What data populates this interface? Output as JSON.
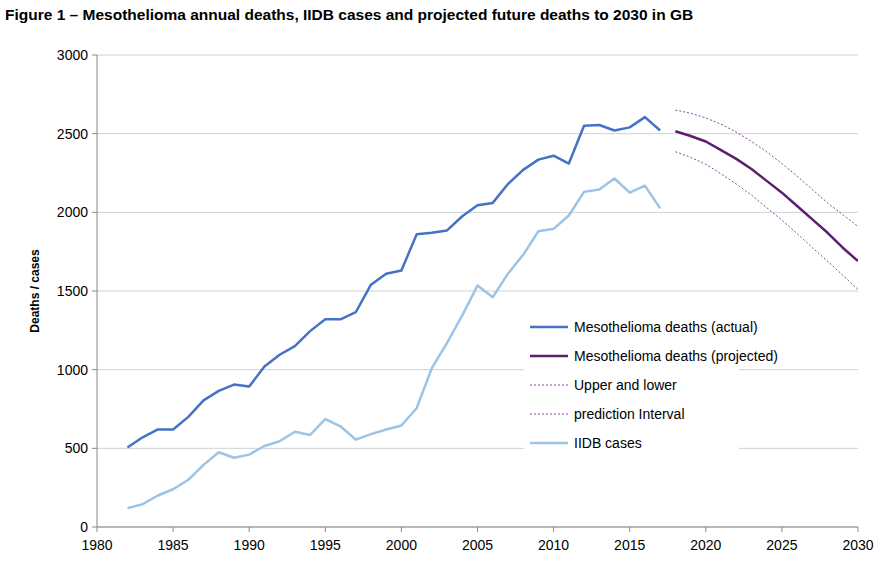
{
  "chart_data": {
    "type": "line",
    "title": "Figure 1 – Mesothelioma annual deaths, IIDB cases and projected future deaths to 2030 in GB",
    "y_label": "Deaths / cases",
    "x": [
      1982,
      1983,
      1984,
      1985,
      1986,
      1987,
      1988,
      1989,
      1990,
      1991,
      1992,
      1993,
      1994,
      1995,
      1996,
      1997,
      1998,
      1999,
      2000,
      2001,
      2002,
      2003,
      2004,
      2005,
      2006,
      2007,
      2008,
      2009,
      2010,
      2011,
      2012,
      2013,
      2014,
      2015,
      2016,
      2017,
      2018,
      2019,
      2020,
      2021,
      2022,
      2023,
      2024,
      2025,
      2026,
      2027,
      2028,
      2029,
      2030
    ],
    "series": [
      {
        "name": "Mesothelioma deaths (actual)",
        "color": "#4472c4",
        "line_style": "solid",
        "values": [
          505,
          570,
          620,
          620,
          700,
          805,
          865,
          905,
          893,
          1020,
          1095,
          1150,
          1245,
          1320,
          1320,
          1365,
          1540,
          1610,
          1630,
          1860,
          1870,
          1885,
          1975,
          2045,
          2060,
          2180,
          2270,
          2335,
          2360,
          2310,
          2550,
          2555,
          2520,
          2540,
          2605,
          2520,
          null,
          null,
          null,
          null,
          null,
          null,
          null,
          null,
          null,
          null,
          null,
          null,
          null
        ]
      },
      {
        "name": "Mesothelioma deaths (projected)",
        "color": "#5c1f6e",
        "line_style": "solid",
        "values": [
          null,
          null,
          null,
          null,
          null,
          null,
          null,
          null,
          null,
          null,
          null,
          null,
          null,
          null,
          null,
          null,
          null,
          null,
          null,
          null,
          null,
          null,
          null,
          null,
          null,
          null,
          null,
          null,
          null,
          null,
          null,
          null,
          null,
          null,
          null,
          null,
          2515,
          2485,
          2450,
          2395,
          2340,
          2275,
          2200,
          2125,
          2040,
          1955,
          1870,
          1775,
          1690
        ]
      },
      {
        "name": "Upper and lower",
        "color": "#8a4a9a",
        "line_style": "dotted",
        "values": [
          null,
          null,
          null,
          null,
          null,
          null,
          null,
          null,
          null,
          null,
          null,
          null,
          null,
          null,
          null,
          null,
          null,
          null,
          null,
          null,
          null,
          null,
          null,
          null,
          null,
          null,
          null,
          null,
          null,
          null,
          null,
          null,
          null,
          null,
          null,
          null,
          2650,
          2630,
          2600,
          2560,
          2510,
          2450,
          2385,
          2310,
          2230,
          2145,
          2060,
          1985,
          1910
        ]
      },
      {
        "name": "prediction Interval",
        "color": "#8a4a9a",
        "line_style": "dotted",
        "values": [
          null,
          null,
          null,
          null,
          null,
          null,
          null,
          null,
          null,
          null,
          null,
          null,
          null,
          null,
          null,
          null,
          null,
          null,
          null,
          null,
          null,
          null,
          null,
          null,
          null,
          null,
          null,
          null,
          null,
          null,
          null,
          null,
          null,
          null,
          null,
          null,
          2385,
          2350,
          2305,
          2245,
          2180,
          2110,
          2030,
          1950,
          1865,
          1775,
          1690,
          1600,
          1510
        ]
      },
      {
        "name": "IIDB cases",
        "color": "#9dc3e6",
        "line_style": "solid",
        "values": [
          120,
          145,
          200,
          240,
          300,
          395,
          475,
          440,
          460,
          515,
          545,
          605,
          585,
          685,
          640,
          555,
          590,
          620,
          645,
          755,
          1010,
          1170,
          1345,
          1535,
          1460,
          1610,
          1730,
          1880,
          1895,
          1980,
          2130,
          2145,
          2215,
          2125,
          2170,
          2025,
          null,
          null,
          null,
          null,
          null,
          null,
          null,
          null,
          null,
          null,
          null,
          null,
          null
        ]
      }
    ],
    "xlim": [
      1980,
      2030
    ],
    "xticks": [
      1980,
      1985,
      1990,
      1995,
      2000,
      2005,
      2010,
      2015,
      2020,
      2025,
      2030
    ],
    "ylim": [
      0,
      3000
    ],
    "yticks": [
      0,
      500,
      1000,
      1500,
      2000,
      2500,
      3000
    ],
    "grid": true,
    "legend": "right"
  }
}
